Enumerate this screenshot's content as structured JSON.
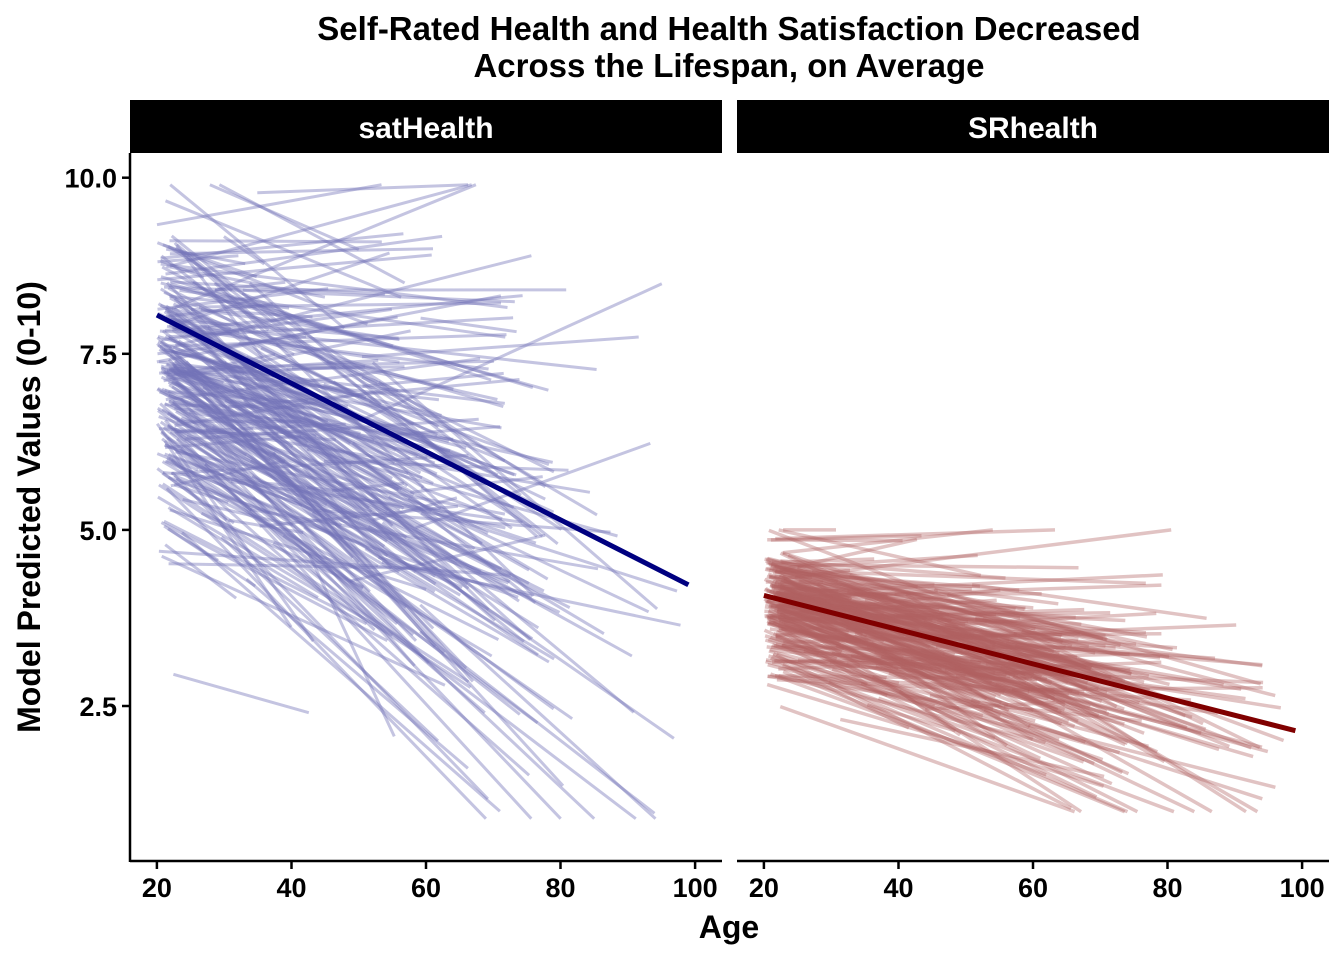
{
  "chart_data": {
    "type": "line",
    "title_lines": [
      "Self-Rated Health and Health Satisfaction Decreased",
      "Across the Lifespan, on Average"
    ],
    "xlabel": "Age",
    "ylabel": "Model Predicted Values (0-10)",
    "xlim": [
      16,
      104
    ],
    "ylim": [
      0.3,
      10.35
    ],
    "x_ticks": [
      20,
      40,
      60,
      80,
      100
    ],
    "x_tick_labels": [
      "20",
      "40",
      "60",
      "80",
      "100"
    ],
    "y_ticks": [
      2.5,
      5.0,
      7.5,
      10.0
    ],
    "y_tick_labels": [
      "2.5",
      "5.0",
      "7.5",
      "10.0"
    ],
    "grid": false,
    "legend": "none",
    "panels": [
      {
        "name": "satHealth",
        "individual_color": "#7373b8",
        "average_color": "#000080",
        "average_line": {
          "x": [
            20,
            99
          ],
          "y": [
            8.05,
            4.22
          ]
        },
        "individual_trajectories": {
          "count": 320,
          "age_start_range": [
            20,
            60
          ],
          "intercept_at_20_mean": 7.3,
          "slope_per_year_mean": -0.045,
          "y_range": [
            0.9,
            9.9
          ]
        }
      },
      {
        "name": "SRhealth",
        "individual_color": "#b06060",
        "average_color": "#800000",
        "average_line": {
          "x": [
            20,
            99
          ],
          "y": [
            4.07,
            2.15
          ]
        },
        "individual_trajectories": {
          "count": 340,
          "age_start_range": [
            20,
            60
          ],
          "intercept_at_20_mean": 4.0,
          "slope_per_year_mean": -0.025,
          "y_range": [
            1.0,
            5.0
          ]
        }
      }
    ]
  }
}
